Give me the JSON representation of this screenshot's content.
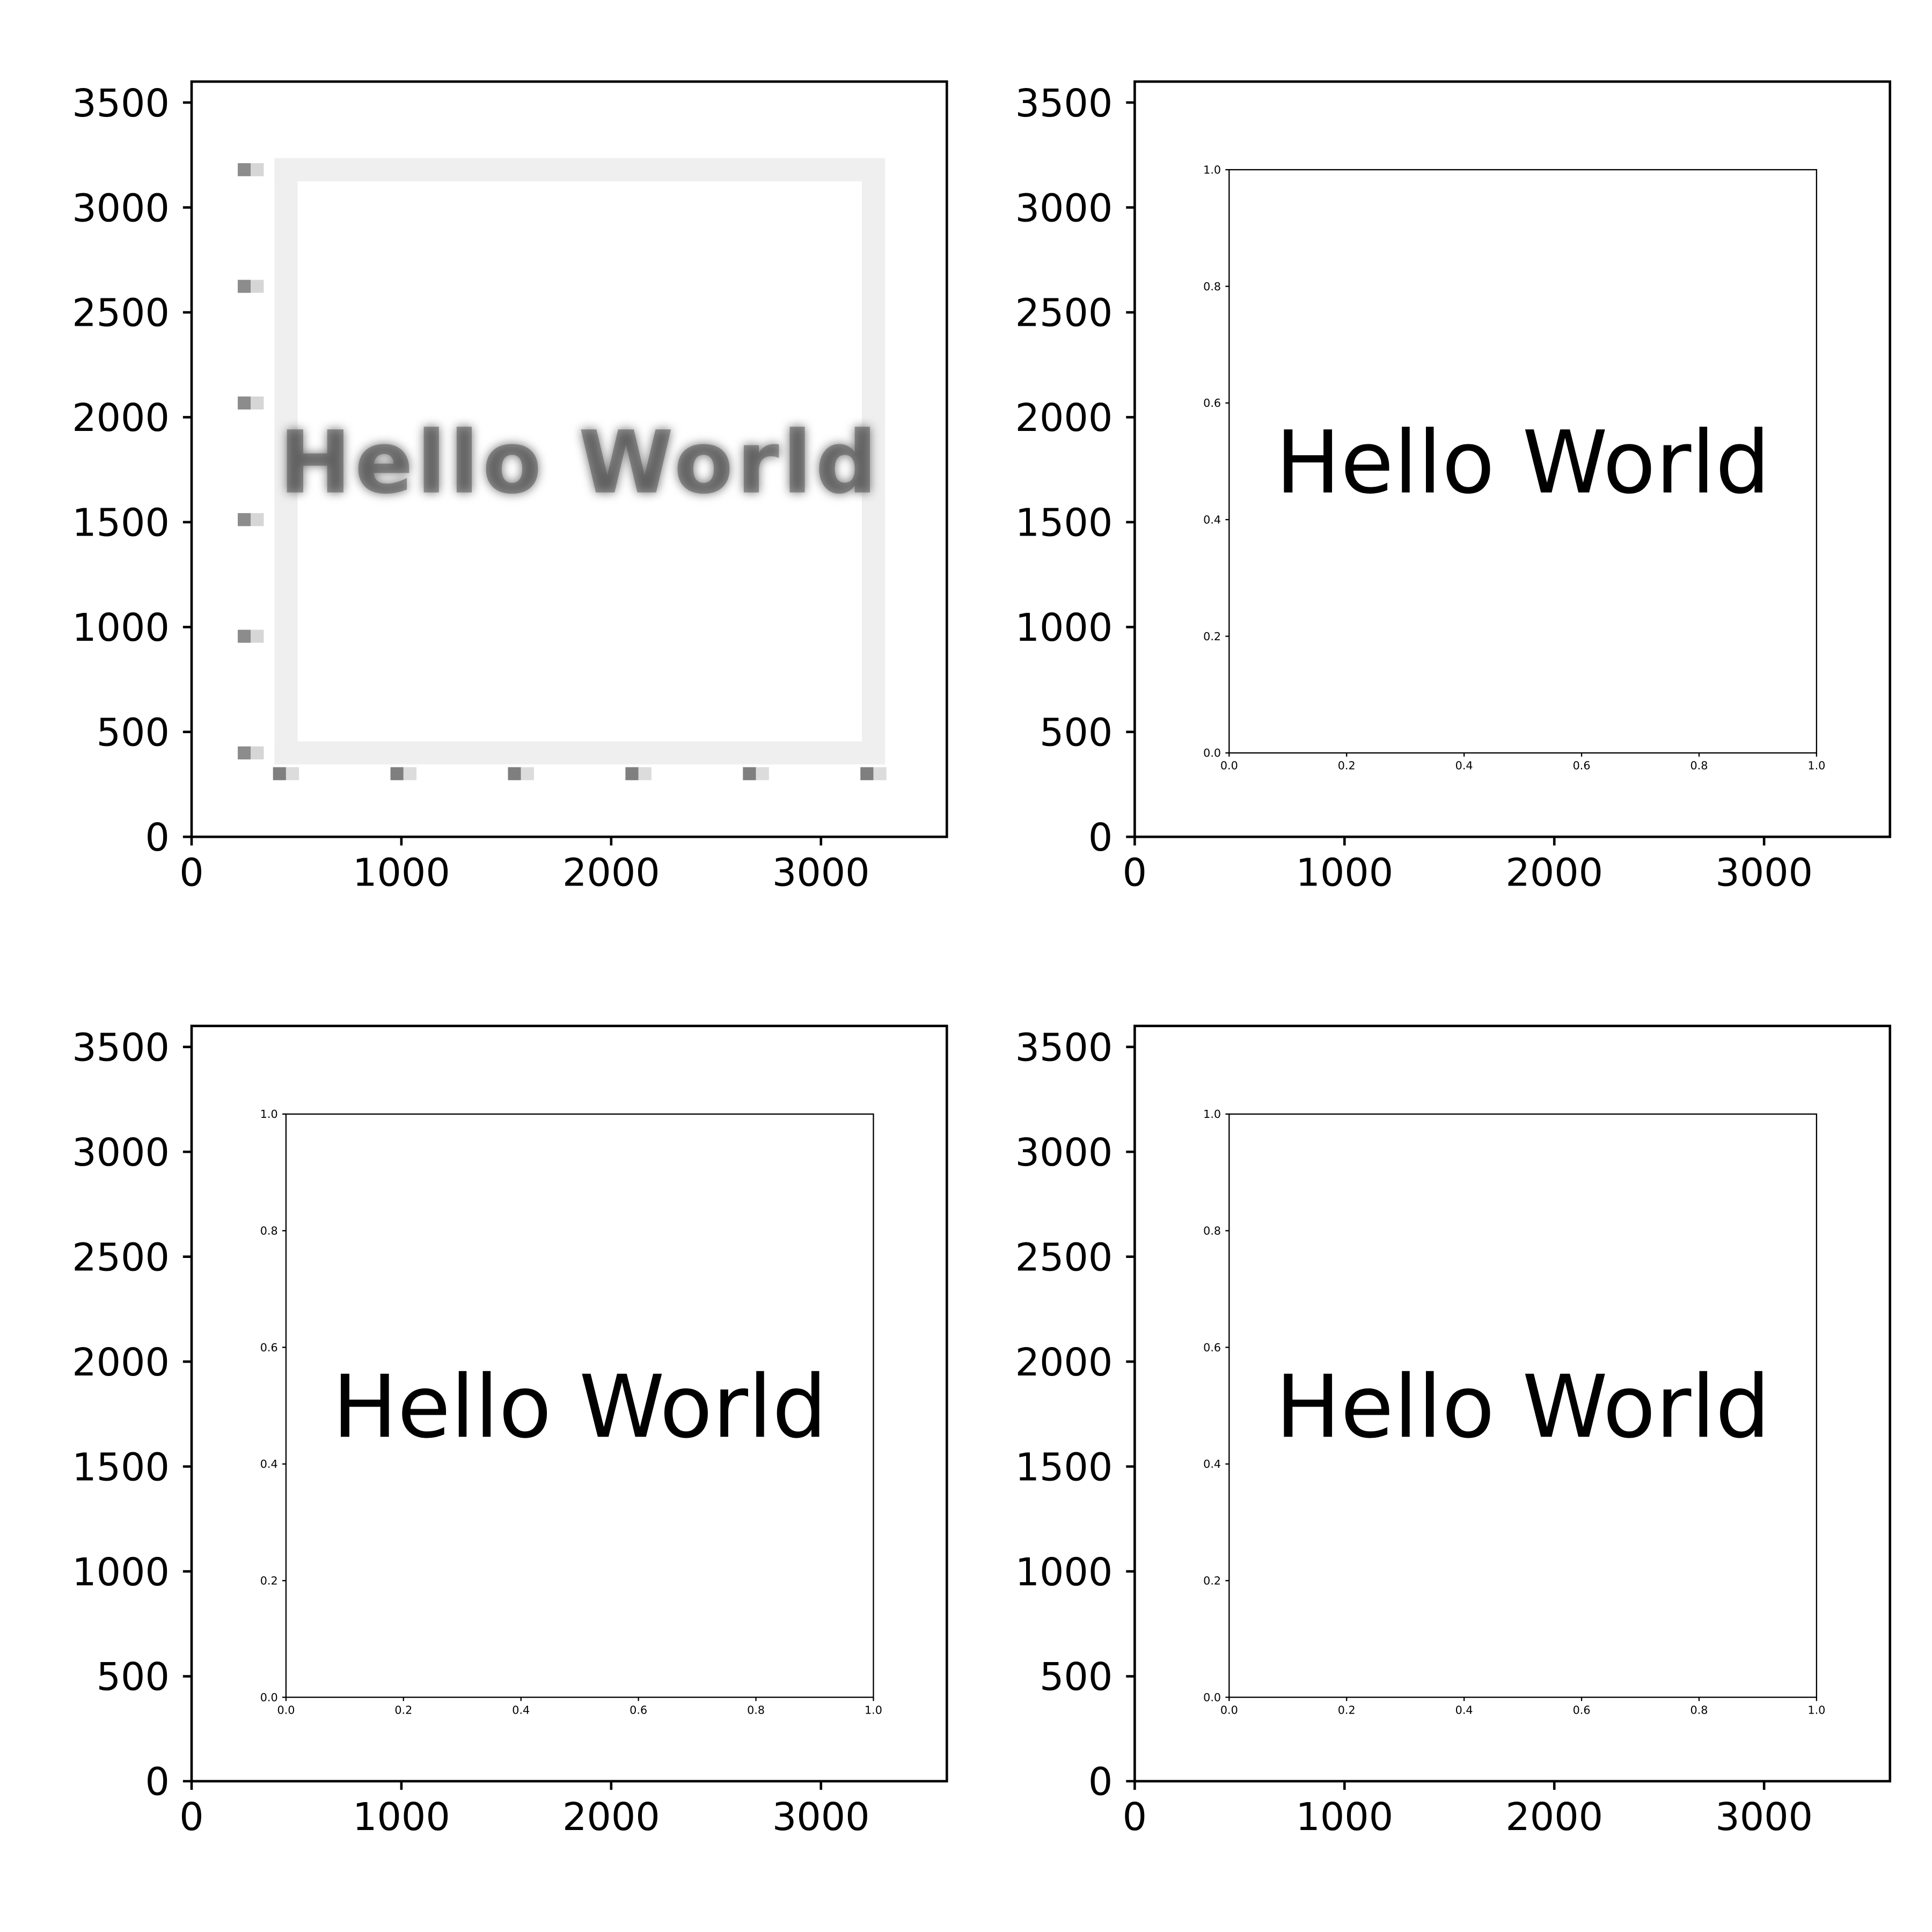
{
  "figure": {
    "background": "#ffffff",
    "axis_color": "#000000"
  },
  "chart_data": [
    {
      "type": "image",
      "title": "",
      "xlabel": "",
      "ylabel": "",
      "xlim": [
        0,
        3600
      ],
      "ylim": [
        0,
        3600
      ],
      "xticks": [
        0,
        1000,
        2000,
        3000
      ],
      "yticks": [
        0,
        500,
        1000,
        1500,
        2000,
        2500,
        3000,
        3500
      ],
      "render": "pixelated",
      "inset": {
        "xlim": [
          0,
          1
        ],
        "ylim": [
          0,
          1
        ],
        "xticks": [
          "0.0",
          "0.2",
          "0.4",
          "0.6",
          "0.8",
          "1.0"
        ],
        "yticks": [
          "0.0",
          "0.2",
          "0.4",
          "0.6",
          "0.8",
          "1.0"
        ],
        "text": "Hello World"
      }
    },
    {
      "type": "image",
      "title": "",
      "xlabel": "",
      "ylabel": "",
      "xlim": [
        0,
        3600
      ],
      "ylim": [
        0,
        3600
      ],
      "xticks": [
        0,
        1000,
        2000,
        3000
      ],
      "yticks": [
        0,
        500,
        1000,
        1500,
        2000,
        2500,
        3000,
        3500
      ],
      "render": "smooth",
      "inset": {
        "xlim": [
          0,
          1
        ],
        "ylim": [
          0,
          1
        ],
        "xticks": [
          "0.0",
          "0.2",
          "0.4",
          "0.6",
          "0.8",
          "1.0"
        ],
        "yticks": [
          "0.0",
          "0.2",
          "0.4",
          "0.6",
          "0.8",
          "1.0"
        ],
        "text": "Hello World"
      }
    },
    {
      "type": "image",
      "title": "",
      "xlabel": "",
      "ylabel": "",
      "xlim": [
        0,
        3600
      ],
      "ylim": [
        0,
        3600
      ],
      "xticks": [
        0,
        1000,
        2000,
        3000
      ],
      "yticks": [
        0,
        500,
        1000,
        1500,
        2000,
        2500,
        3000,
        3500
      ],
      "render": "smooth",
      "inset": {
        "xlim": [
          0,
          1
        ],
        "ylim": [
          0,
          1
        ],
        "xticks": [
          "0.0",
          "0.2",
          "0.4",
          "0.6",
          "0.8",
          "1.0"
        ],
        "yticks": [
          "0.0",
          "0.2",
          "0.4",
          "0.6",
          "0.8",
          "1.0"
        ],
        "text": "Hello World"
      }
    },
    {
      "type": "image",
      "title": "",
      "xlabel": "",
      "ylabel": "",
      "xlim": [
        0,
        3600
      ],
      "ylim": [
        0,
        3600
      ],
      "xticks": [
        0,
        1000,
        2000,
        3000
      ],
      "yticks": [
        0,
        500,
        1000,
        1500,
        2000,
        2500,
        3000,
        3500
      ],
      "render": "smooth",
      "inset": {
        "xlim": [
          0,
          1
        ],
        "ylim": [
          0,
          1
        ],
        "xticks": [
          "0.0",
          "0.2",
          "0.4",
          "0.6",
          "0.8",
          "1.0"
        ],
        "yticks": [
          "0.0",
          "0.2",
          "0.4",
          "0.6",
          "0.8",
          "1.0"
        ],
        "text": "Hello World"
      }
    }
  ]
}
